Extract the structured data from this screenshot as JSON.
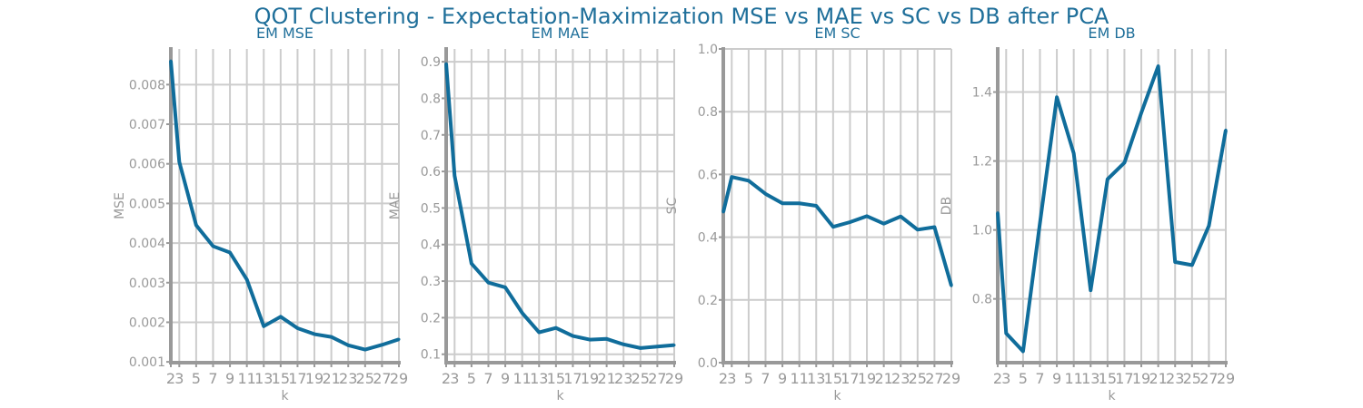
{
  "title": "QOT Clustering - Expectation-Maximization MSE vs MAE vs SC vs DB after PCA",
  "colors": {
    "line": "#106d9b",
    "title": "#1f6f9a",
    "grid": "#cccccc",
    "axis": "#999999"
  },
  "chart_data": [
    {
      "type": "line",
      "title": "EM MSE",
      "xlabel": "k",
      "ylabel": "MSE",
      "x": [
        2,
        3,
        5,
        7,
        9,
        11,
        13,
        15,
        17,
        19,
        21,
        23,
        25,
        27,
        29
      ],
      "xticks": [
        2,
        3,
        5,
        7,
        9,
        11,
        13,
        15,
        17,
        19,
        21,
        23,
        25,
        27,
        29
      ],
      "series": [
        {
          "values": [
            0.0086,
            0.00605,
            0.00445,
            0.00392,
            0.00376,
            0.00308,
            0.0019,
            0.00214,
            0.00185,
            0.0017,
            0.00163,
            0.00142,
            0.00131,
            0.00143,
            0.00157
          ]
        }
      ],
      "yticks": [
        0.001,
        0.002,
        0.003,
        0.004,
        0.005,
        0.006,
        0.007,
        0.008
      ],
      "yticklabels": [
        "0.001",
        "0.002",
        "0.003",
        "0.004",
        "0.005",
        "0.006",
        "0.007",
        "0.008"
      ],
      "ylim": [
        0.00098,
        0.0089
      ],
      "xlim": [
        2,
        29
      ],
      "grid": true
    },
    {
      "type": "line",
      "title": "EM MAE",
      "xlabel": "k",
      "ylabel": "MAE",
      "x": [
        2,
        3,
        5,
        7,
        9,
        11,
        13,
        15,
        17,
        19,
        21,
        23,
        25,
        27,
        29
      ],
      "xticks": [
        2,
        3,
        5,
        7,
        9,
        11,
        13,
        15,
        17,
        19,
        21,
        23,
        25,
        27,
        29
      ],
      "series": [
        {
          "values": [
            0.895,
            0.588,
            0.348,
            0.296,
            0.283,
            0.213,
            0.16,
            0.172,
            0.15,
            0.14,
            0.142,
            0.127,
            0.117,
            0.121,
            0.125
          ]
        }
      ],
      "yticks": [
        0.1,
        0.2,
        0.3,
        0.4,
        0.5,
        0.6,
        0.7,
        0.8,
        0.9
      ],
      "yticklabels": [
        "0.1",
        "0.2",
        "0.3",
        "0.4",
        "0.5",
        "0.6",
        "0.7",
        "0.8",
        "0.9"
      ],
      "ylim": [
        0.077,
        0.935
      ],
      "xlim": [
        2,
        29
      ],
      "grid": true
    },
    {
      "type": "line",
      "title": "EM SC",
      "xlabel": "k",
      "ylabel": "SC",
      "x": [
        2,
        3,
        5,
        7,
        9,
        11,
        13,
        15,
        17,
        19,
        21,
        23,
        25,
        27,
        29
      ],
      "xticks": [
        2,
        3,
        5,
        7,
        9,
        11,
        13,
        15,
        17,
        19,
        21,
        23,
        25,
        27,
        29
      ],
      "series": [
        {
          "values": [
            0.48,
            0.592,
            0.58,
            0.538,
            0.508,
            0.508,
            0.5,
            0.433,
            0.448,
            0.467,
            0.443,
            0.466,
            0.424,
            0.432,
            0.245
          ]
        }
      ],
      "yticks": [
        0.0,
        0.2,
        0.4,
        0.6,
        0.8,
        1.0
      ],
      "yticklabels": [
        "0.0",
        "0.2",
        "0.4",
        "0.6",
        "0.8",
        "1.0"
      ],
      "ylim": [
        0,
        1.0
      ],
      "xlim": [
        2,
        29
      ],
      "grid": true
    },
    {
      "type": "line",
      "title": "EM DB",
      "xlabel": "k",
      "ylabel": "DB",
      "x": [
        2,
        3,
        5,
        7,
        9,
        11,
        13,
        15,
        17,
        19,
        21,
        23,
        25,
        27,
        29
      ],
      "xticks": [
        2,
        3,
        5,
        7,
        9,
        11,
        13,
        15,
        17,
        19,
        21,
        23,
        25,
        27,
        29
      ],
      "series": [
        {
          "values": [
            1.05,
            0.7,
            0.648,
            1.02,
            1.385,
            1.222,
            0.825,
            1.147,
            1.195,
            1.34,
            1.475,
            0.907,
            0.898,
            1.012,
            1.29
          ]
        }
      ],
      "yticks": [
        0.8,
        1.0,
        1.2,
        1.4
      ],
      "yticklabels": [
        "0.8",
        "1.0",
        "1.2",
        "1.4"
      ],
      "ylim": [
        0.615,
        1.525
      ],
      "xlim": [
        2,
        29
      ],
      "grid": true
    }
  ]
}
